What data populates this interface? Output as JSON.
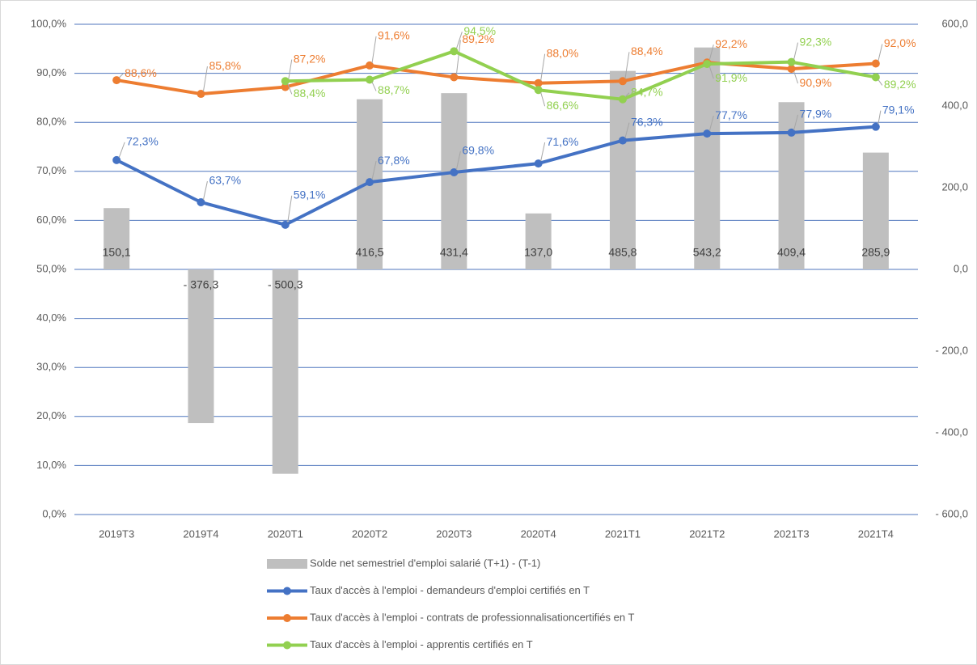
{
  "chart_data": {
    "type": "combo",
    "categories": [
      "2019T3",
      "2019T4",
      "2020T1",
      "2020T2",
      "2020T3",
      "2020T4",
      "2021T1",
      "2021T2",
      "2021T3",
      "2021T4"
    ],
    "ylim": [
      0,
      100
    ],
    "yticks": [
      {
        "value": 0,
        "label": "0,0%"
      },
      {
        "value": 10,
        "label": "10,0%"
      },
      {
        "value": 20,
        "label": "20,0%"
      },
      {
        "value": 30,
        "label": "30,0%"
      },
      {
        "value": 40,
        "label": "40,0%"
      },
      {
        "value": 50,
        "label": "50,0%"
      },
      {
        "value": 60,
        "label": "60,0%"
      },
      {
        "value": 70,
        "label": "70,0%"
      },
      {
        "value": 80,
        "label": "80,0%"
      },
      {
        "value": 90,
        "label": "90,0%"
      },
      {
        "value": 100,
        "label": "100,0%"
      }
    ],
    "y2lim": [
      -600,
      600
    ],
    "y2ticks": [
      {
        "value": -600,
        "label": "- 600,0"
      },
      {
        "value": -400,
        "label": "- 400,0"
      },
      {
        "value": -200,
        "label": "- 200,0"
      },
      {
        "value": 0,
        "label": "0,0"
      },
      {
        "value": 200,
        "label": "200,0"
      },
      {
        "value": 400,
        "label": "400,0"
      },
      {
        "value": 600,
        "label": "600,0"
      }
    ],
    "grid": true,
    "legend": "bottom",
    "series": [
      {
        "name": "Solde net semestriel d'emploi salarié (T+1) - (T-1)",
        "type": "bar",
        "axis": "y2",
        "color": "#bfbfbf",
        "values": [
          150.1,
          -376.3,
          -500.3,
          416.5,
          431.4,
          137.0,
          485.8,
          543.2,
          409.4,
          285.9
        ],
        "value_labels": [
          "150,1",
          "- 376,3",
          "- 500,3",
          "416,5",
          "431,4",
          "137,0",
          "485,8",
          "543,2",
          "409,4",
          "285,9"
        ]
      },
      {
        "name": "Taux d'accès à l'emploi - demandeurs d'emploi certifiés en T",
        "type": "line",
        "color": "#4472c4",
        "values": [
          72.3,
          63.7,
          59.1,
          67.8,
          69.8,
          71.6,
          76.3,
          77.7,
          77.9,
          79.1
        ],
        "value_labels": [
          "72,3%",
          "63,7%",
          "59,1%",
          "67,8%",
          "69,8%",
          "71,6%",
          "76,3%",
          "77,7%",
          "77,9%",
          "79,1%"
        ]
      },
      {
        "name": "Taux d'accès à l'emploi - contrats de professionnalisationcertifiés en T",
        "type": "line",
        "color": "#ed7d31",
        "values": [
          88.6,
          85.8,
          87.2,
          91.6,
          89.2,
          88.0,
          88.4,
          92.2,
          90.9,
          92.0
        ],
        "value_labels": [
          "88,6%",
          "85,8%",
          "87,2%",
          "91,6%",
          "89,2%",
          "88,0%",
          "88,4%",
          "92,2%",
          "90,9%",
          "92,0%"
        ]
      },
      {
        "name": "Taux d'accès à l'emploi - apprentis certifiés en T",
        "type": "line",
        "color": "#92d050",
        "values": [
          null,
          null,
          88.4,
          88.7,
          94.5,
          86.6,
          84.7,
          91.9,
          92.3,
          89.2
        ],
        "value_labels": [
          null,
          null,
          "88,4%",
          "88,7%",
          "94,5%",
          "86,6%",
          "84,7%",
          "91,9%",
          "92,3%",
          "89,2%"
        ]
      }
    ]
  }
}
